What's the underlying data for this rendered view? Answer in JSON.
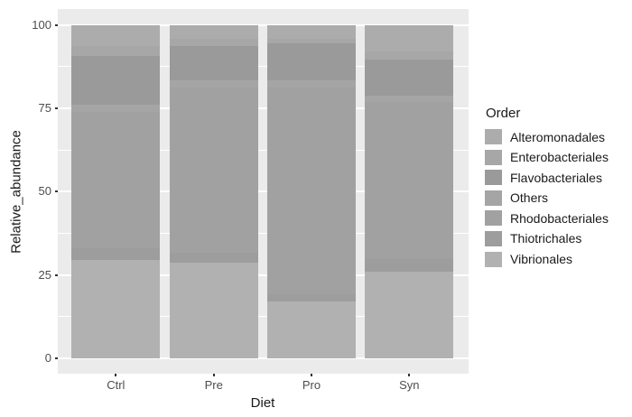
{
  "chart_data": {
    "type": "bar",
    "subtype": "stacked-percent",
    "title": "",
    "xlabel": "Diet",
    "ylabel": "Relative_abundance",
    "categories": [
      "Ctrl",
      "Pre",
      "Pro",
      "Syn"
    ],
    "y_ticks": [
      0,
      25,
      50,
      75,
      100
    ],
    "ylim": [
      0,
      100
    ],
    "grid": true,
    "legend_position": "right",
    "legend_title": "Order",
    "series": [
      {
        "name": "Alteromonadales",
        "color": "#ACACAC",
        "values": [
          6.2,
          4.2,
          4.0,
          7.8
        ]
      },
      {
        "name": "Enterobacteriales",
        "color": "#A7A7A7",
        "values": [
          3.2,
          2.0,
          1.5,
          2.5
        ]
      },
      {
        "name": "Flavobacteriales",
        "color": "#9A9A9A",
        "values": [
          14.6,
          10.5,
          11.2,
          10.9
        ]
      },
      {
        "name": "Others",
        "color": "#A5A5A5",
        "values": [
          2.0,
          2.0,
          2.0,
          2.0
        ]
      },
      {
        "name": "Rhodobacteriales",
        "color": "#A1A1A1",
        "values": [
          40.9,
          49.6,
          62.0,
          47.0
        ]
      },
      {
        "name": "Thiotrichales",
        "color": "#9D9D9D",
        "values": [
          3.5,
          3.0,
          2.4,
          3.8
        ]
      },
      {
        "name": "Vibrionales",
        "color": "#B1B1B1",
        "values": [
          29.6,
          28.7,
          16.9,
          26.0
        ]
      }
    ],
    "panel_background": "#EBEBEB",
    "gridline_color": "#FFFFFF",
    "tick_label_color": "#4D4D4D",
    "axis_title_color": "#1A1A1A"
  }
}
